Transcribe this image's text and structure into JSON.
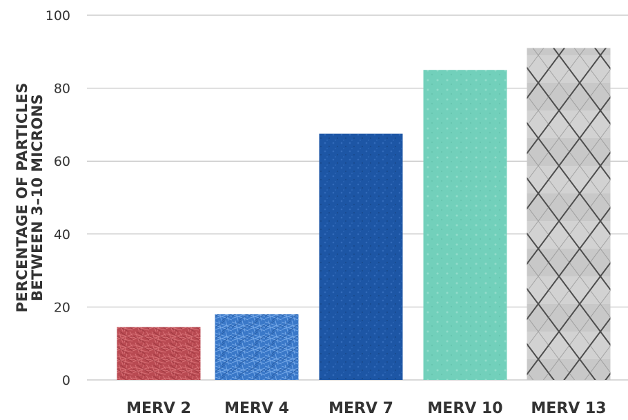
{
  "chart_data": {
    "type": "bar",
    "title": "",
    "xlabel": "",
    "ylabel_lines": [
      "PERCENTAGE OF PARTICLES",
      "BETWEEN 3–10 MICRONS"
    ],
    "categories": [
      "MERV 2",
      "MERV 4",
      "MERV 7",
      "MERV 10",
      "MERV 13"
    ],
    "values": [
      14.5,
      18,
      67.5,
      85,
      91
    ],
    "ylim": [
      0,
      100
    ],
    "yticks": [
      0,
      20,
      40,
      60,
      80,
      100
    ],
    "grid": true,
    "legend": "none",
    "bar_styles": [
      {
        "texture": "red-fibers",
        "base": "#b94a52",
        "fiber": "#e07a80"
      },
      {
        "texture": "blue-fibers",
        "base": "#3a78c8",
        "fiber": "#7fb0ec"
      },
      {
        "texture": "blue-felt",
        "base": "#1d56a5",
        "fiber": "#3a74c4"
      },
      {
        "texture": "mint-felt",
        "base": "#72d0bb",
        "fiber": "#a6e4d6"
      },
      {
        "texture": "pleated-mesh",
        "base": "#c4c4c4",
        "fiber": "#555555"
      }
    ],
    "colors": {
      "grid": "#b3b3b3",
      "text": "#333333"
    }
  }
}
